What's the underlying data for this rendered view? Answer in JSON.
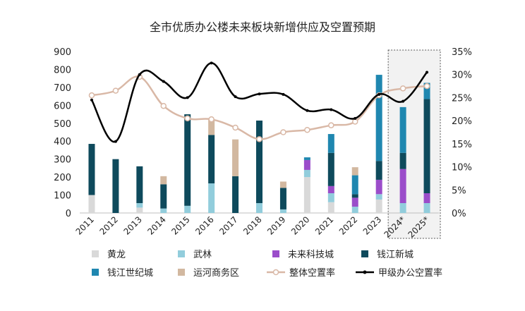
{
  "chart_data": {
    "type": "bar",
    "title": "全市优质办公楼未来板块新增供应及空置预期",
    "categories": [
      "2011",
      "2012",
      "2013",
      "2014",
      "2015",
      "2016",
      "2017",
      "2018",
      "2019",
      "2020",
      "2021",
      "2022",
      "2023",
      "2024*",
      "2025*"
    ],
    "stacked": true,
    "series": [
      {
        "name": "黄龙",
        "color": "#d9d9d9",
        "values": [
          100,
          0,
          30,
          0,
          0,
          0,
          0,
          0,
          0,
          200,
          60,
          0,
          75,
          0,
          0
        ]
      },
      {
        "name": "武林",
        "color": "#92cddc",
        "values": [
          0,
          0,
          25,
          25,
          40,
          165,
          0,
          55,
          20,
          40,
          50,
          35,
          30,
          55,
          55
        ]
      },
      {
        "name": "未来科技城",
        "color": "#9b4dca",
        "values": [
          0,
          0,
          0,
          0,
          0,
          0,
          0,
          0,
          0,
          55,
          40,
          50,
          80,
          190,
          55
        ]
      },
      {
        "name": "钱江新城",
        "color": "#0e4a5c",
        "values": [
          285,
          300,
          205,
          135,
          510,
          270,
          205,
          460,
          120,
          0,
          185,
          20,
          105,
          90,
          525
        ]
      },
      {
        "name": "钱江世纪城",
        "color": "#1f87b0",
        "values": [
          0,
          0,
          0,
          0,
          0,
          0,
          0,
          0,
          0,
          15,
          105,
          105,
          480,
          255,
          90
        ]
      },
      {
        "name": "运河商务区",
        "color": "#d2b8a0",
        "values": [
          0,
          0,
          0,
          45,
          0,
          85,
          205,
          0,
          35,
          0,
          0,
          45,
          0,
          0,
          0
        ]
      }
    ],
    "lines": [
      {
        "name": "整体空置率",
        "color": "#d9b8a6",
        "axis": "right",
        "values": [
          25.5,
          26.5,
          29.5,
          23.2,
          20.5,
          20.3,
          18.5,
          16.0,
          17.5,
          18.0,
          19.0,
          19.8,
          25.5,
          27.0,
          27.5
        ]
      },
      {
        "name": "甲级办公空置率",
        "color": "#000000",
        "axis": "right",
        "values": [
          24.5,
          15.5,
          30.0,
          28.5,
          25.0,
          32.5,
          25.2,
          25.8,
          25.7,
          22.2,
          22.4,
          20.5,
          25.7,
          24.2,
          30.5
        ]
      }
    ],
    "ylim_left": [
      0,
      900
    ],
    "yticks_left": [
      "0",
      "100",
      "200",
      "300",
      "400",
      "500",
      "600",
      "700",
      "800",
      "900"
    ],
    "ylim_right": [
      0,
      35
    ],
    "yticks_right": [
      "0%",
      "5%",
      "10%",
      "15%",
      "20%",
      "25%",
      "30%",
      "35%"
    ],
    "forecast_categories": [
      "2024*",
      "2025*"
    ],
    "legend_position": "bottom"
  }
}
